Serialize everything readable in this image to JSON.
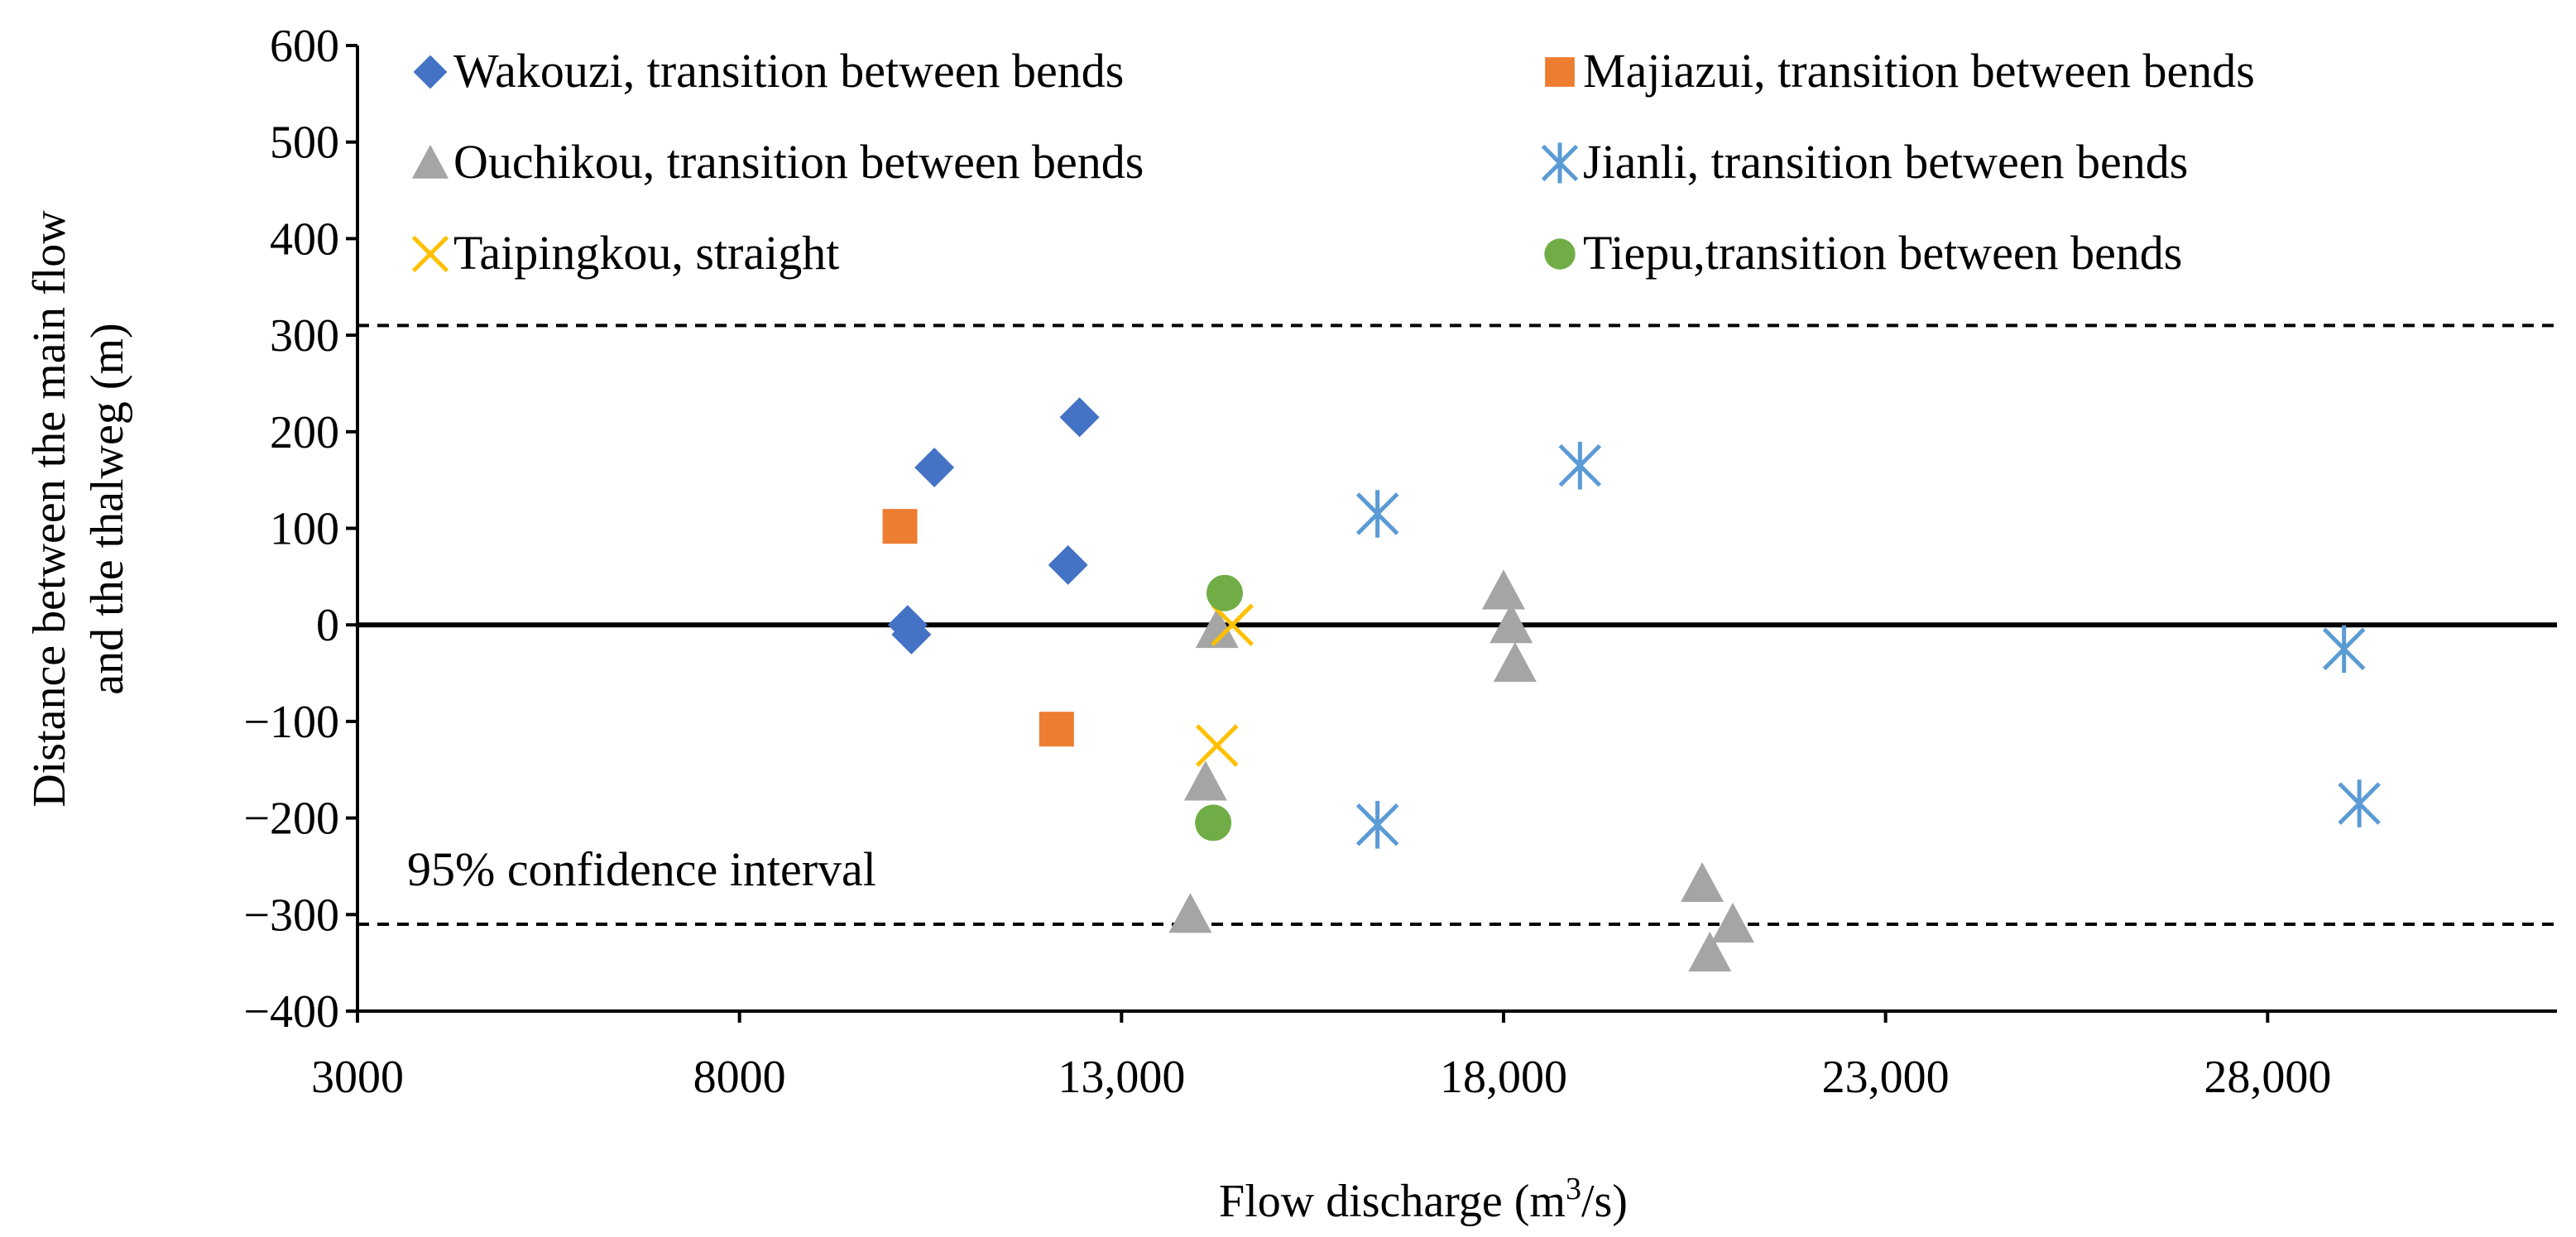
{
  "chart_data": {
    "type": "scatter",
    "title": "",
    "xlabel_main": "Flow discharge (m",
    "xlabel_sup": "3",
    "xlabel_tail": "/s)",
    "ylabel_line1": "Distance between the main flow",
    "ylabel_line2": "and the thalweg (m)",
    "xlim": [
      3000,
      30500
    ],
    "ylim": [
      -400,
      600
    ],
    "x_ticks": [
      {
        "value": 3000,
        "label": "3000"
      },
      {
        "value": 8000,
        "label": "8000"
      },
      {
        "value": 13000,
        "label": "13,000"
      },
      {
        "value": 18000,
        "label": "18,000"
      },
      {
        "value": 23000,
        "label": "23,000"
      },
      {
        "value": 28000,
        "label": "28,000"
      }
    ],
    "y_ticks": [
      {
        "value": 600,
        "label": "600"
      },
      {
        "value": 500,
        "label": "500"
      },
      {
        "value": 400,
        "label": "400"
      },
      {
        "value": 300,
        "label": "300"
      },
      {
        "value": 200,
        "label": "200"
      },
      {
        "value": 100,
        "label": "100"
      },
      {
        "value": 0,
        "label": "0"
      },
      {
        "value": -100,
        "label": "−100"
      },
      {
        "value": -200,
        "label": "−200"
      },
      {
        "value": -300,
        "label": "−300"
      },
      {
        "value": -400,
        "label": "−400"
      }
    ],
    "zero_line": 0,
    "confidence_interval": {
      "upper": 310,
      "lower": -310,
      "label": "95% confidence interval"
    },
    "legend_position": "top",
    "series": [
      {
        "name": "Wakouzi, transition between bends",
        "marker": "diamond",
        "color": "#4472C4",
        "points": [
          [
            10200,
            0
          ],
          [
            10250,
            -10
          ],
          [
            10550,
            163
          ],
          [
            12300,
            62
          ],
          [
            12450,
            215
          ]
        ]
      },
      {
        "name": "Majiazui, transition between bends",
        "marker": "square",
        "color": "#ED7D31",
        "points": [
          [
            10100,
            102
          ],
          [
            12150,
            -108
          ]
        ]
      },
      {
        "name": "Ouchikou, transition between bends",
        "marker": "triangle",
        "color": "#A5A5A5",
        "points": [
          [
            13900,
            -300
          ],
          [
            14100,
            -163
          ],
          [
            14250,
            -5
          ],
          [
            18000,
            35
          ],
          [
            18100,
            0
          ],
          [
            18150,
            -40
          ],
          [
            20600,
            -268
          ],
          [
            20700,
            -340
          ],
          [
            21000,
            -310
          ]
        ]
      },
      {
        "name": "Jianli, transition between bends",
        "marker": "asterisk",
        "color": "#5B9BD5",
        "points": [
          [
            16350,
            115
          ],
          [
            16350,
            -207
          ],
          [
            19000,
            165
          ],
          [
            29000,
            -25
          ],
          [
            29200,
            -185
          ]
        ]
      },
      {
        "name": "Taipingkou, straight",
        "marker": "x",
        "color": "#FFC000",
        "points": [
          [
            14250,
            -125
          ],
          [
            14450,
            0
          ]
        ]
      },
      {
        "name": "Tiepu,transition between bends",
        "marker": "circle",
        "color": "#70AD47",
        "points": [
          [
            14200,
            -205
          ],
          [
            14350,
            33
          ]
        ]
      }
    ]
  }
}
